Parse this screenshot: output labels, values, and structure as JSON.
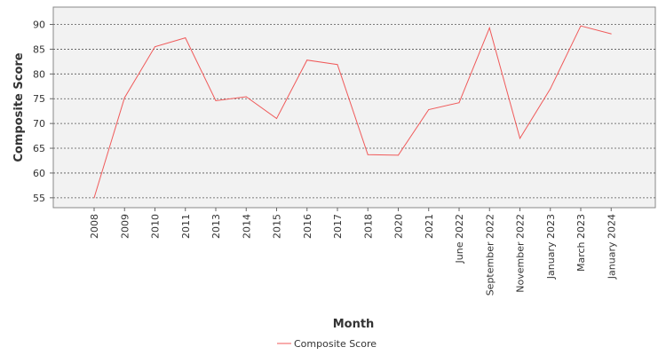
{
  "chart_data": {
    "type": "line",
    "title": "",
    "xlabel": "Month",
    "ylabel": "Composite Score",
    "categories": [
      "2008",
      "2009",
      "2010",
      "2011",
      "2013",
      "2014",
      "2015",
      "2016",
      "2017",
      "2018",
      "2020",
      "2021",
      "June 2022",
      "September 2022",
      "November 2022",
      "January 2023",
      "March 2023",
      "January 2024"
    ],
    "series": [
      {
        "name": "Composite Score",
        "color": "#f05a5a",
        "values": [
          55.0,
          75.2,
          85.5,
          87.3,
          74.6,
          75.4,
          71.0,
          82.8,
          81.9,
          63.7,
          63.6,
          72.8,
          74.2,
          89.3,
          67.0,
          77.0,
          89.7,
          88.1
        ]
      }
    ],
    "yticks": [
      55,
      60,
      65,
      70,
      75,
      80,
      85,
      90
    ],
    "ylim": [
      53,
      93.5
    ],
    "grid": true,
    "legend": "bottom-center"
  }
}
